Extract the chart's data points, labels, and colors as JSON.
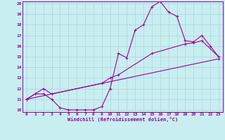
{
  "xlabel": "Windchill (Refroidissement éolien,°C)",
  "xlim": [
    -0.5,
    23.5
  ],
  "ylim": [
    9.8,
    20.2
  ],
  "xticks": [
    0,
    1,
    2,
    3,
    4,
    5,
    6,
    7,
    8,
    9,
    10,
    11,
    12,
    13,
    14,
    15,
    16,
    17,
    18,
    19,
    20,
    21,
    22,
    23
  ],
  "yticks": [
    10,
    11,
    12,
    13,
    14,
    15,
    16,
    17,
    18,
    19,
    20
  ],
  "bg_color": "#c8eef0",
  "grid_color": "#b0d8e0",
  "line_color": "#990099",
  "line1_x": [
    0,
    1,
    2,
    3,
    4,
    5,
    6,
    7,
    8,
    9,
    10,
    11,
    12,
    13,
    14,
    15,
    16,
    17,
    18,
    19,
    20,
    21,
    22,
    23
  ],
  "line1_y": [
    11.0,
    11.5,
    11.5,
    11.0,
    10.2,
    10.0,
    10.0,
    10.0,
    10.0,
    10.3,
    12.0,
    15.3,
    14.9,
    17.5,
    18.0,
    19.7,
    20.2,
    19.2,
    18.8,
    16.5,
    16.4,
    17.0,
    16.0,
    15.0
  ],
  "line2_x": [
    0,
    2,
    3,
    9,
    10,
    11,
    15,
    19,
    20,
    21,
    23
  ],
  "line2_y": [
    11.0,
    12.0,
    11.5,
    12.5,
    13.0,
    13.3,
    15.3,
    16.2,
    16.3,
    16.5,
    15.0
  ],
  "line3_x": [
    0,
    23
  ],
  "line3_y": [
    11.0,
    14.8
  ]
}
